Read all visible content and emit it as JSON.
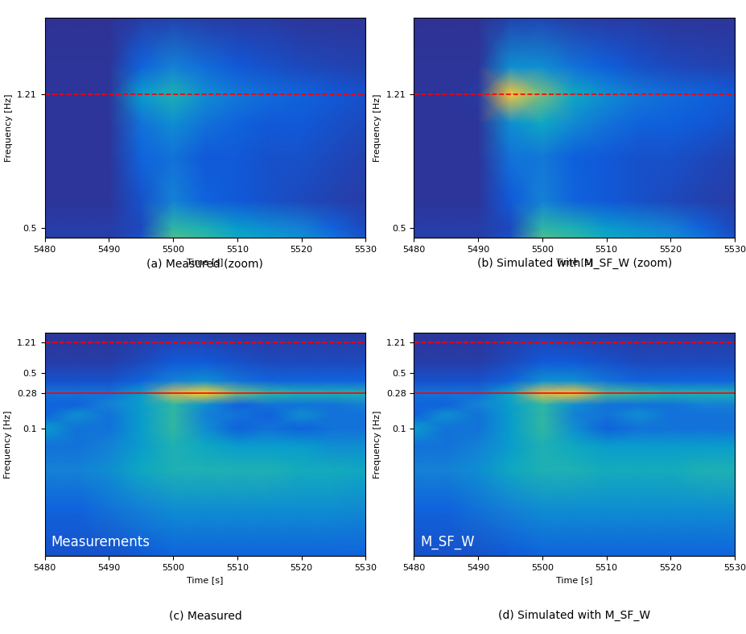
{
  "chart_data": [
    {
      "type": "heatmap",
      "caption": "(a) Measured (zoom)",
      "xlabel": "Time [s]",
      "ylabel": "Frequency [Hz]",
      "log": "y",
      "xlim": [
        5480,
        5530
      ],
      "ylim": [
        0.47,
        2.0
      ],
      "xticks": [
        5480,
        5490,
        5500,
        5510,
        5520,
        5530
      ],
      "yticks": [
        0.5,
        1.21
      ],
      "x": [
        5480,
        5485,
        5490,
        5495,
        5500,
        5505,
        5510,
        5515,
        5520,
        5525,
        5530
      ],
      "y": [
        0.47,
        0.5,
        0.6,
        0.8,
        1.0,
        1.21,
        1.45,
        2.0
      ],
      "cells": [
        [
          0.05,
          0.05,
          0.05,
          0.1,
          0.55,
          0.5,
          0.4,
          0.35,
          0.3,
          0.2,
          0.1
        ],
        [
          0.05,
          0.05,
          0.05,
          0.08,
          0.5,
          0.45,
          0.35,
          0.3,
          0.25,
          0.15,
          0.08
        ],
        [
          0.03,
          0.03,
          0.03,
          0.1,
          0.25,
          0.15,
          0.12,
          0.1,
          0.08,
          0.06,
          0.05
        ],
        [
          0.03,
          0.03,
          0.03,
          0.15,
          0.2,
          0.12,
          0.12,
          0.1,
          0.1,
          0.08,
          0.06
        ],
        [
          0.03,
          0.03,
          0.03,
          0.2,
          0.3,
          0.2,
          0.15,
          0.12,
          0.12,
          0.1,
          0.08
        ],
        [
          0.03,
          0.03,
          0.03,
          0.35,
          0.45,
          0.3,
          0.22,
          0.18,
          0.15,
          0.12,
          0.1
        ],
        [
          0.03,
          0.03,
          0.03,
          0.15,
          0.25,
          0.18,
          0.12,
          0.1,
          0.08,
          0.07,
          0.06
        ],
        [
          0.02,
          0.02,
          0.02,
          0.05,
          0.06,
          0.05,
          0.04,
          0.04,
          0.03,
          0.03,
          0.03
        ]
      ],
      "color_range": [
        0,
        1
      ],
      "reference_lines": [
        {
          "value": 1.21,
          "color": "red",
          "line_style": "dashed"
        }
      ]
    },
    {
      "type": "heatmap",
      "caption": "(b) Simulated with M_SF_W (zoom)",
      "xlabel": "Time [s]",
      "ylabel": "Frequency [Hz]",
      "log": "y",
      "xlim": [
        5480,
        5530
      ],
      "ylim": [
        0.47,
        2.0
      ],
      "xticks": [
        5480,
        5490,
        5500,
        5510,
        5520,
        5530
      ],
      "yticks": [
        0.5,
        1.21
      ],
      "x": [
        5480,
        5485,
        5490,
        5495,
        5500,
        5505,
        5510,
        5515,
        5520,
        5525,
        5530
      ],
      "y": [
        0.47,
        0.5,
        0.6,
        0.8,
        1.0,
        1.21,
        1.45,
        2.0
      ],
      "cells": [
        [
          0.05,
          0.05,
          0.05,
          0.1,
          0.55,
          0.5,
          0.4,
          0.35,
          0.3,
          0.2,
          0.1
        ],
        [
          0.05,
          0.05,
          0.05,
          0.08,
          0.5,
          0.45,
          0.35,
          0.3,
          0.25,
          0.15,
          0.08
        ],
        [
          0.03,
          0.03,
          0.03,
          0.12,
          0.25,
          0.15,
          0.12,
          0.1,
          0.08,
          0.06,
          0.05
        ],
        [
          0.03,
          0.03,
          0.03,
          0.2,
          0.22,
          0.14,
          0.12,
          0.1,
          0.1,
          0.08,
          0.06
        ],
        [
          0.03,
          0.03,
          0.03,
          0.3,
          0.4,
          0.28,
          0.2,
          0.15,
          0.14,
          0.12,
          0.1
        ],
        [
          0.03,
          0.03,
          0.04,
          0.85,
          0.6,
          0.4,
          0.3,
          0.22,
          0.18,
          0.15,
          0.12
        ],
        [
          0.03,
          0.03,
          0.03,
          0.3,
          0.3,
          0.2,
          0.14,
          0.1,
          0.08,
          0.07,
          0.06
        ],
        [
          0.02,
          0.02,
          0.02,
          0.06,
          0.07,
          0.05,
          0.04,
          0.04,
          0.03,
          0.03,
          0.03
        ]
      ],
      "color_range": [
        0,
        1
      ],
      "reference_lines": [
        {
          "value": 1.21,
          "color": "red",
          "line_style": "dashed"
        }
      ]
    },
    {
      "type": "heatmap",
      "caption": "(c) Measured",
      "xlabel": "Time [s]",
      "ylabel": "Frequency [Hz]",
      "annotation": "Measurements",
      "log": "y",
      "xlim": [
        5480,
        5530
      ],
      "ylim": [
        0.0025,
        1.6
      ],
      "xticks": [
        5480,
        5490,
        5500,
        5510,
        5520,
        5530
      ],
      "yticks": [
        0.1,
        0.28,
        0.5,
        1.21
      ],
      "x": [
        5480,
        5485,
        5490,
        5495,
        5500,
        5505,
        5510,
        5515,
        5520,
        5525,
        5530
      ],
      "y": [
        0.0025,
        0.01,
        0.03,
        0.06,
        0.1,
        0.15,
        0.2,
        0.28,
        0.4,
        0.7,
        1.6
      ],
      "cells": [
        [
          0.1,
          0.1,
          0.1,
          0.12,
          0.15,
          0.15,
          0.15,
          0.15,
          0.15,
          0.15,
          0.15
        ],
        [
          0.15,
          0.15,
          0.2,
          0.25,
          0.3,
          0.3,
          0.3,
          0.3,
          0.3,
          0.3,
          0.28
        ],
        [
          0.25,
          0.25,
          0.3,
          0.4,
          0.45,
          0.45,
          0.45,
          0.45,
          0.42,
          0.42,
          0.4
        ],
        [
          0.2,
          0.2,
          0.25,
          0.35,
          0.45,
          0.4,
          0.35,
          0.35,
          0.35,
          0.3,
          0.3
        ],
        [
          0.35,
          0.2,
          0.2,
          0.35,
          0.5,
          0.3,
          0.15,
          0.2,
          0.15,
          0.2,
          0.2
        ],
        [
          0.15,
          0.3,
          0.2,
          0.35,
          0.5,
          0.25,
          0.2,
          0.15,
          0.3,
          0.2,
          0.2
        ],
        [
          0.15,
          0.15,
          0.25,
          0.35,
          0.5,
          0.3,
          0.15,
          0.2,
          0.2,
          0.2,
          0.25
        ],
        [
          0.2,
          0.2,
          0.2,
          0.35,
          0.75,
          0.9,
          0.6,
          0.5,
          0.45,
          0.45,
          0.45
        ],
        [
          0.1,
          0.1,
          0.1,
          0.15,
          0.25,
          0.3,
          0.2,
          0.15,
          0.15,
          0.15,
          0.15
        ],
        [
          0.05,
          0.05,
          0.05,
          0.08,
          0.12,
          0.12,
          0.1,
          0.08,
          0.08,
          0.08,
          0.08
        ],
        [
          0.03,
          0.03,
          0.03,
          0.04,
          0.05,
          0.05,
          0.04,
          0.04,
          0.04,
          0.04,
          0.04
        ]
      ],
      "color_range": [
        0,
        1
      ],
      "reference_lines": [
        {
          "value": 1.21,
          "color": "red",
          "line_style": "dashed"
        },
        {
          "value": 0.28,
          "color": "red",
          "line_style": "solid"
        }
      ]
    },
    {
      "type": "heatmap",
      "caption": "(d) Simulated with M_SF_W",
      "xlabel": "Time [s]",
      "ylabel": "Frequency [Hz]",
      "annotation": "M_SF_W",
      "log": "y",
      "xlim": [
        5480,
        5530
      ],
      "ylim": [
        0.0025,
        1.6
      ],
      "xticks": [
        5480,
        5490,
        5500,
        5510,
        5520,
        5530
      ],
      "yticks": [
        0.1,
        0.28,
        0.5,
        1.21
      ],
      "x": [
        5480,
        5485,
        5490,
        5495,
        5500,
        5505,
        5510,
        5515,
        5520,
        5525,
        5530
      ],
      "y": [
        0.0025,
        0.01,
        0.03,
        0.06,
        0.1,
        0.15,
        0.2,
        0.28,
        0.4,
        0.7,
        1.6
      ],
      "cells": [
        [
          0.1,
          0.1,
          0.1,
          0.12,
          0.15,
          0.15,
          0.15,
          0.15,
          0.15,
          0.15,
          0.15
        ],
        [
          0.15,
          0.15,
          0.2,
          0.25,
          0.3,
          0.3,
          0.3,
          0.3,
          0.3,
          0.3,
          0.3
        ],
        [
          0.25,
          0.25,
          0.3,
          0.4,
          0.45,
          0.45,
          0.42,
          0.42,
          0.42,
          0.45,
          0.45
        ],
        [
          0.2,
          0.2,
          0.25,
          0.35,
          0.45,
          0.4,
          0.35,
          0.35,
          0.35,
          0.35,
          0.35
        ],
        [
          0.35,
          0.2,
          0.2,
          0.35,
          0.5,
          0.3,
          0.15,
          0.2,
          0.2,
          0.2,
          0.2
        ],
        [
          0.15,
          0.3,
          0.2,
          0.35,
          0.5,
          0.25,
          0.2,
          0.3,
          0.2,
          0.2,
          0.2
        ],
        [
          0.15,
          0.15,
          0.25,
          0.35,
          0.5,
          0.3,
          0.2,
          0.2,
          0.2,
          0.25,
          0.25
        ],
        [
          0.2,
          0.2,
          0.2,
          0.4,
          0.8,
          0.85,
          0.55,
          0.5,
          0.45,
          0.45,
          0.45
        ],
        [
          0.1,
          0.1,
          0.1,
          0.15,
          0.3,
          0.3,
          0.2,
          0.15,
          0.15,
          0.15,
          0.15
        ],
        [
          0.05,
          0.05,
          0.05,
          0.08,
          0.12,
          0.12,
          0.1,
          0.08,
          0.08,
          0.08,
          0.08
        ],
        [
          0.03,
          0.03,
          0.03,
          0.05,
          0.06,
          0.05,
          0.04,
          0.04,
          0.04,
          0.04,
          0.04
        ]
      ],
      "color_range": [
        0,
        1
      ],
      "reference_lines": [
        {
          "value": 1.21,
          "color": "red",
          "line_style": "dashed"
        },
        {
          "value": 0.28,
          "color": "red",
          "line_style": "solid"
        }
      ]
    }
  ]
}
